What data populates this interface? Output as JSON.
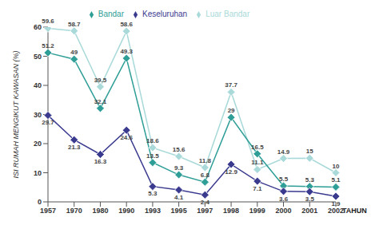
{
  "chart_data": {
    "type": "line",
    "x_label": "TAHUN",
    "y_label": "ISI RUMAH MENGIKUT KAWASAN (%)",
    "categories": [
      "1957",
      "1970",
      "1980",
      "1990",
      "1993",
      "1995",
      "1997",
      "1998",
      "1999",
      "2000",
      "2001",
      "2002"
    ],
    "series": [
      {
        "name": "Luar Bandar",
        "color": "#a9d9d9",
        "values": [
          59.6,
          58.7,
          39.5,
          58.6,
          18.6,
          15.6,
          11.8,
          37.7,
          11.1,
          14.9,
          15,
          10
        ]
      },
      {
        "name": "Bandar",
        "color": "#2e9e96",
        "values": [
          51.2,
          49,
          32.1,
          49.3,
          13.5,
          9.3,
          6.8,
          29,
          16.5,
          5.5,
          5.3,
          5.1
        ]
      },
      {
        "name": "Keseluruhan",
        "color": "#3a3a8f",
        "values": [
          29.7,
          21.3,
          16.3,
          24.6,
          5.3,
          4.1,
          2.4,
          12.9,
          7.1,
          3.6,
          3.5,
          1.9
        ]
      }
    ],
    "ylim": [
      0,
      60
    ],
    "yticks": [
      0,
      10,
      20,
      30,
      40,
      50,
      60
    ],
    "grid": false,
    "legend": "top",
    "data_labels": true,
    "marker": "diamond"
  }
}
